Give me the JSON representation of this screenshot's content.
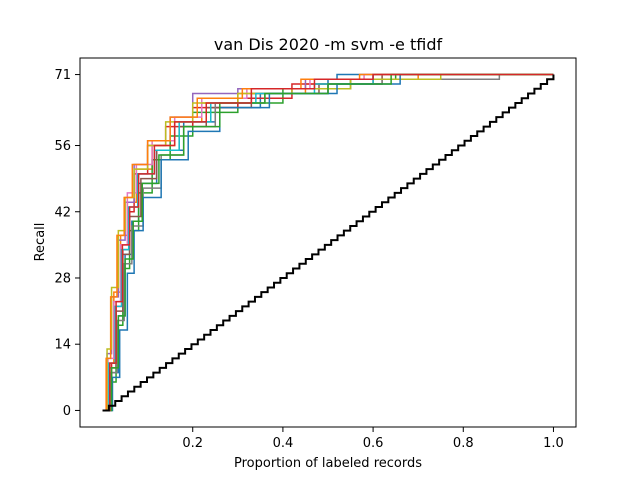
{
  "chart_data": {
    "type": "line",
    "title": "van Dis 2020 -m svm -e tfidf",
    "xlabel": "Proportion of labeled records",
    "ylabel": "Recall",
    "xlim": [
      -0.05,
      1.05
    ],
    "ylim": [
      -3.5,
      74.5
    ],
    "x_ticks": [
      {
        "value": 0.2,
        "label": "0.2"
      },
      {
        "value": 0.4,
        "label": "0.4"
      },
      {
        "value": 0.6,
        "label": "0.6"
      },
      {
        "value": 0.8,
        "label": "0.8"
      },
      {
        "value": 1.0,
        "label": "1.0"
      }
    ],
    "y_ticks": [
      {
        "value": 0,
        "label": "0"
      },
      {
        "value": 14,
        "label": "14"
      },
      {
        "value": 28,
        "label": "28"
      },
      {
        "value": 42,
        "label": "42"
      },
      {
        "value": 56,
        "label": "56"
      },
      {
        "value": 71,
        "label": "71"
      }
    ],
    "grid": false,
    "legend": "none",
    "total_relevant": 71,
    "series": [
      {
        "color": "#1f77b4",
        "points": [
          [
            0,
            0
          ],
          [
            0.02,
            8
          ],
          [
            0.035,
            20
          ],
          [
            0.05,
            33
          ],
          [
            0.065,
            40
          ],
          [
            0.08,
            48
          ],
          [
            0.12,
            55
          ],
          [
            0.18,
            61
          ],
          [
            0.25,
            64
          ],
          [
            0.35,
            67
          ],
          [
            0.5,
            70
          ],
          [
            0.52,
            71
          ],
          [
            1.0,
            71
          ]
        ]
      },
      {
        "color": "#ff7f0e",
        "points": [
          [
            0,
            0
          ],
          [
            0.01,
            10
          ],
          [
            0.025,
            25
          ],
          [
            0.04,
            37
          ],
          [
            0.055,
            44
          ],
          [
            0.075,
            51
          ],
          [
            0.11,
            56
          ],
          [
            0.16,
            61
          ],
          [
            0.22,
            65
          ],
          [
            0.3,
            67
          ],
          [
            0.45,
            69
          ],
          [
            0.55,
            70
          ],
          [
            0.7,
            71
          ],
          [
            1.0,
            71
          ]
        ]
      },
      {
        "color": "#2ca02c",
        "points": [
          [
            0,
            0
          ],
          [
            0.015,
            6
          ],
          [
            0.03,
            18
          ],
          [
            0.045,
            30
          ],
          [
            0.06,
            38
          ],
          [
            0.08,
            46
          ],
          [
            0.11,
            53
          ],
          [
            0.15,
            58
          ],
          [
            0.2,
            63
          ],
          [
            0.3,
            65
          ],
          [
            0.4,
            68
          ],
          [
            0.55,
            70
          ],
          [
            0.65,
            71
          ],
          [
            1.0,
            71
          ]
        ]
      },
      {
        "color": "#d62728",
        "points": [
          [
            0,
            0
          ],
          [
            0.02,
            10
          ],
          [
            0.03,
            22
          ],
          [
            0.045,
            34
          ],
          [
            0.06,
            42
          ],
          [
            0.07,
            50
          ],
          [
            0.1,
            56
          ],
          [
            0.14,
            60
          ],
          [
            0.2,
            64
          ],
          [
            0.3,
            66
          ],
          [
            0.42,
            69
          ],
          [
            0.6,
            71
          ],
          [
            1.0,
            71
          ]
        ]
      },
      {
        "color": "#9467bd",
        "points": [
          [
            0,
            0
          ],
          [
            0.01,
            12
          ],
          [
            0.02,
            24
          ],
          [
            0.035,
            36
          ],
          [
            0.05,
            44
          ],
          [
            0.07,
            52
          ],
          [
            0.1,
            57
          ],
          [
            0.15,
            62
          ],
          [
            0.2,
            67
          ],
          [
            0.3,
            68
          ],
          [
            0.45,
            70
          ],
          [
            0.6,
            71
          ],
          [
            1.0,
            71
          ]
        ]
      },
      {
        "color": "#8c564b",
        "points": [
          [
            0,
            0
          ],
          [
            0.015,
            9
          ],
          [
            0.03,
            21
          ],
          [
            0.045,
            33
          ],
          [
            0.06,
            41
          ],
          [
            0.085,
            49
          ],
          [
            0.12,
            55
          ],
          [
            0.17,
            60
          ],
          [
            0.23,
            64
          ],
          [
            0.33,
            67
          ],
          [
            0.48,
            69
          ],
          [
            0.62,
            71
          ],
          [
            1.0,
            71
          ]
        ]
      },
      {
        "color": "#e377c2",
        "points": [
          [
            0,
            0
          ],
          [
            0.012,
            11
          ],
          [
            0.025,
            23
          ],
          [
            0.04,
            35
          ],
          [
            0.055,
            46
          ],
          [
            0.075,
            52
          ],
          [
            0.11,
            57
          ],
          [
            0.16,
            62
          ],
          [
            0.22,
            66
          ],
          [
            0.32,
            68
          ],
          [
            0.46,
            70
          ],
          [
            0.58,
            71
          ],
          [
            1.0,
            71
          ]
        ]
      },
      {
        "color": "#7f7f7f",
        "points": [
          [
            0,
            0
          ],
          [
            0.018,
            8
          ],
          [
            0.032,
            19
          ],
          [
            0.048,
            31
          ],
          [
            0.065,
            39
          ],
          [
            0.09,
            47
          ],
          [
            0.13,
            54
          ],
          [
            0.18,
            60
          ],
          [
            0.25,
            65
          ],
          [
            0.36,
            67
          ],
          [
            0.5,
            69
          ],
          [
            0.62,
            70
          ],
          [
            0.88,
            71
          ],
          [
            1.0,
            71
          ]
        ]
      },
      {
        "color": "#bcbd22",
        "points": [
          [
            0,
            0
          ],
          [
            0.01,
            13
          ],
          [
            0.02,
            26
          ],
          [
            0.035,
            38
          ],
          [
            0.05,
            45
          ],
          [
            0.07,
            51
          ],
          [
            0.1,
            56
          ],
          [
            0.14,
            61
          ],
          [
            0.2,
            65
          ],
          [
            0.3,
            67
          ],
          [
            0.42,
            68
          ],
          [
            0.55,
            70
          ],
          [
            0.75,
            71
          ],
          [
            1.0,
            71
          ]
        ]
      },
      {
        "color": "#17becf",
        "points": [
          [
            0,
            0
          ],
          [
            0.014,
            10
          ],
          [
            0.028,
            22
          ],
          [
            0.042,
            34
          ],
          [
            0.058,
            43
          ],
          [
            0.078,
            50
          ],
          [
            0.115,
            55
          ],
          [
            0.17,
            61
          ],
          [
            0.24,
            65
          ],
          [
            0.34,
            67
          ],
          [
            0.47,
            69
          ],
          [
            0.6,
            71
          ],
          [
            1.0,
            71
          ]
        ]
      },
      {
        "color": "#1f77b4",
        "points": [
          [
            0,
            0
          ],
          [
            0.022,
            7
          ],
          [
            0.038,
            17
          ],
          [
            0.055,
            29
          ],
          [
            0.07,
            38
          ],
          [
            0.09,
            45
          ],
          [
            0.13,
            53
          ],
          [
            0.19,
            59
          ],
          [
            0.26,
            64
          ],
          [
            0.37,
            67
          ],
          [
            0.52,
            69
          ],
          [
            0.66,
            71
          ],
          [
            1.0,
            71
          ]
        ]
      },
      {
        "color": "#ff7f0e",
        "points": [
          [
            0,
            0
          ],
          [
            0.008,
            11
          ],
          [
            0.018,
            24
          ],
          [
            0.032,
            37
          ],
          [
            0.048,
            45
          ],
          [
            0.066,
            52
          ],
          [
            0.1,
            57
          ],
          [
            0.15,
            62
          ],
          [
            0.21,
            66
          ],
          [
            0.31,
            68
          ],
          [
            0.44,
            70
          ],
          [
            0.57,
            71
          ],
          [
            1.0,
            71
          ]
        ]
      },
      {
        "color": "#2ca02c",
        "points": [
          [
            0,
            0
          ],
          [
            0.02,
            9
          ],
          [
            0.035,
            20
          ],
          [
            0.05,
            32
          ],
          [
            0.068,
            40
          ],
          [
            0.088,
            48
          ],
          [
            0.125,
            54
          ],
          [
            0.18,
            60
          ],
          [
            0.26,
            65
          ],
          [
            0.36,
            67
          ],
          [
            0.5,
            69
          ],
          [
            0.64,
            71
          ],
          [
            1.0,
            71
          ]
        ]
      },
      {
        "color": "#d62728",
        "points": [
          [
            0,
            0
          ],
          [
            0.016,
            10
          ],
          [
            0.03,
            23
          ],
          [
            0.044,
            35
          ],
          [
            0.06,
            43
          ],
          [
            0.08,
            50
          ],
          [
            0.115,
            56
          ],
          [
            0.16,
            61
          ],
          [
            0.23,
            65
          ],
          [
            0.33,
            68
          ],
          [
            0.47,
            70
          ],
          [
            0.6,
            71
          ],
          [
            1.0,
            71
          ]
        ]
      }
    ],
    "baseline": {
      "color": "#000000",
      "points": [
        [
          0,
          0
        ],
        [
          1.0,
          71
        ]
      ]
    }
  }
}
